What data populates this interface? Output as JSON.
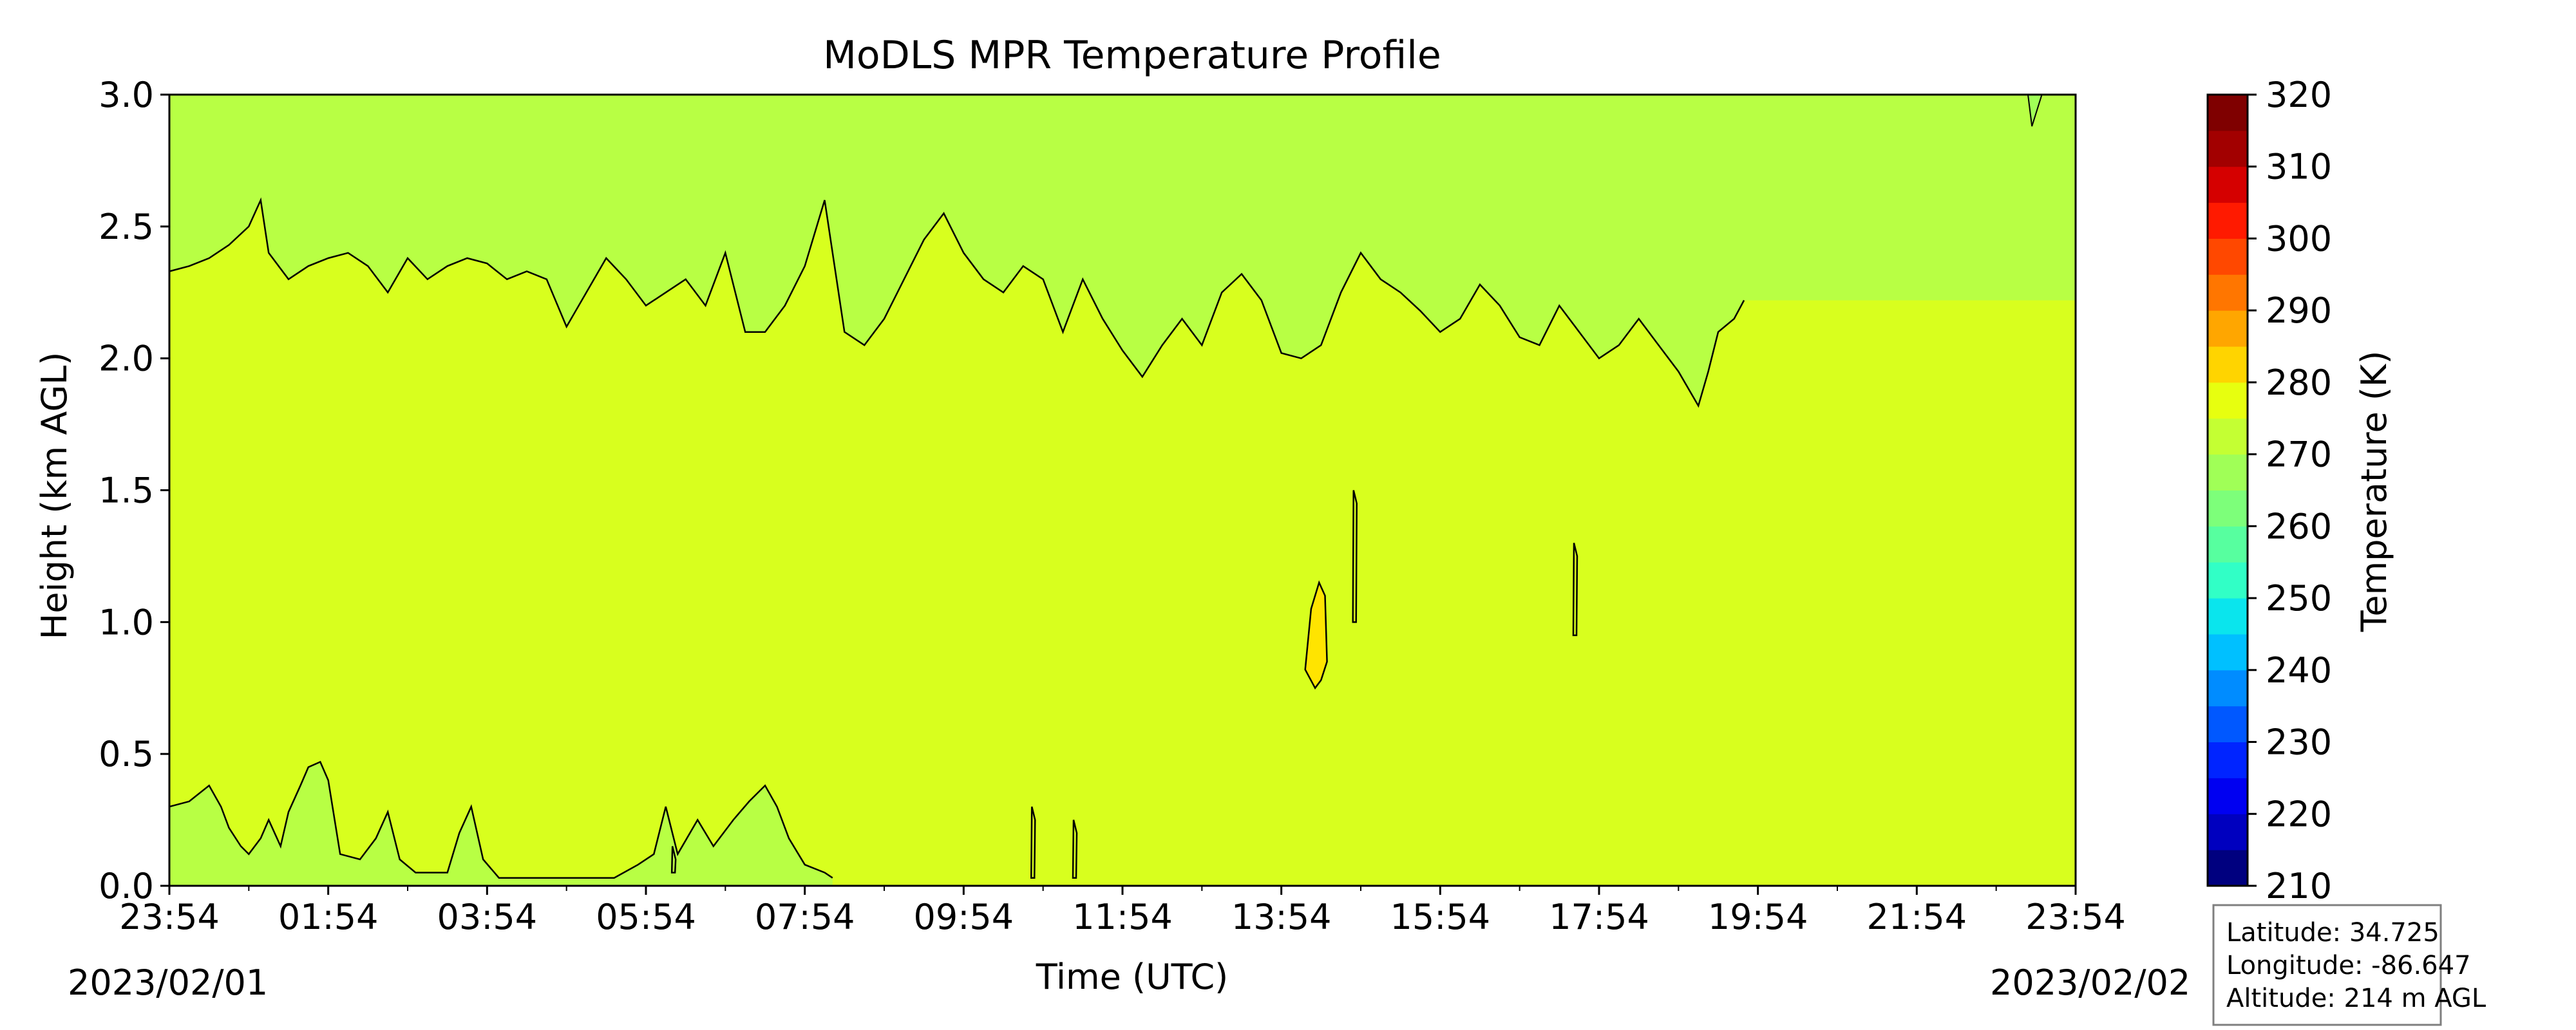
{
  "chart_data": {
    "type": "contour",
    "title": "MoDLS MPR Temperature Profile",
    "xlabel": "Time (UTC)",
    "ylabel": "Height (km AGL)",
    "ylim": [
      0,
      3.0
    ],
    "yticks": [
      "0.0",
      "0.5",
      "1.0",
      "1.5",
      "2.0",
      "2.5",
      "3.0"
    ],
    "xticks": [
      "23:54",
      "01:54",
      "03:54",
      "05:54",
      "07:54",
      "09:54",
      "11:54",
      "13:54",
      "15:54",
      "17:54",
      "19:54",
      "21:54",
      "23:54"
    ],
    "start_date": "2023/02/01",
    "end_date": "2023/02/02",
    "colorbar": {
      "label": "Temperature (K)",
      "range": [
        210,
        320
      ],
      "step": 5,
      "tick_labels": [
        "210",
        "220",
        "230",
        "240",
        "250",
        "260",
        "270",
        "280",
        "290",
        "300",
        "310",
        "320"
      ],
      "colors": [
        "#00007f",
        "#0000bf",
        "#0000f1",
        "#0024ff",
        "#0058ff",
        "#008cff",
        "#00c0ff",
        "#0ae5ed",
        "#31ffc6",
        "#57ff9f",
        "#7dff7a",
        "#a0ff57",
        "#c4ff33",
        "#e7ff0f",
        "#ffd400",
        "#ffa600",
        "#ff7600",
        "#ff4800",
        "#ff1a00",
        "#d50000",
        "#a20000",
        "#7f0000"
      ]
    },
    "contour_levels": [
      {
        "range": [
          270,
          275
        ],
        "color": "#b8ff44",
        "regions": [
          "above about 2.0-2.6 km all day",
          "below about 0.1-0.47 km from 23:54 to about 09:54"
        ]
      },
      {
        "range": [
          275,
          280
        ],
        "color": "#d8ff1e",
        "regions": [
          "main layer from surface to about 2.0-2.6 km"
        ]
      },
      {
        "range": [
          280,
          285
        ],
        "color": "#ffe400",
        "regions": [
          "small pocket near 14:14, 0.75-1.15 km"
        ]
      }
    ],
    "upper_boundary_km": [
      [
        0.0,
        2.33
      ],
      [
        0.5,
        2.35
      ],
      [
        1.0,
        2.38
      ],
      [
        1.5,
        2.43
      ],
      [
        2.0,
        2.5
      ],
      [
        2.3,
        2.6
      ],
      [
        2.5,
        2.4
      ],
      [
        3.0,
        2.3
      ],
      [
        3.5,
        2.35
      ],
      [
        4.0,
        2.38
      ],
      [
        4.5,
        2.4
      ],
      [
        5.0,
        2.35
      ],
      [
        5.5,
        2.25
      ],
      [
        6.0,
        2.38
      ],
      [
        6.5,
        2.3
      ],
      [
        7.0,
        2.35
      ],
      [
        7.5,
        2.38
      ],
      [
        8.0,
        2.36
      ],
      [
        8.5,
        2.3
      ],
      [
        9.0,
        2.33
      ],
      [
        9.5,
        2.3
      ],
      [
        10.0,
        2.12
      ],
      [
        10.5,
        2.25
      ],
      [
        11.0,
        2.38
      ],
      [
        11.5,
        2.3
      ],
      [
        12.0,
        2.2
      ],
      [
        12.5,
        2.25
      ],
      [
        13.0,
        2.3
      ],
      [
        13.5,
        2.2
      ],
      [
        14.0,
        2.4
      ],
      [
        14.5,
        2.1
      ],
      [
        15.0,
        2.1
      ],
      [
        15.5,
        2.2
      ],
      [
        16.0,
        2.35
      ],
      [
        16.5,
        2.6
      ],
      [
        17.0,
        2.1
      ],
      [
        17.5,
        2.05
      ],
      [
        18.0,
        2.15
      ],
      [
        18.5,
        2.3
      ],
      [
        19.0,
        2.45
      ],
      [
        19.5,
        2.55
      ],
      [
        20.0,
        2.4
      ],
      [
        20.5,
        2.3
      ],
      [
        21.0,
        2.25
      ],
      [
        21.5,
        2.35
      ],
      [
        22.0,
        2.3
      ],
      [
        22.5,
        2.1
      ],
      [
        23.0,
        2.3
      ],
      [
        23.5,
        2.15
      ],
      [
        24.0,
        2.03
      ],
      [
        24.5,
        1.93
      ],
      [
        25.0,
        2.05
      ],
      [
        25.5,
        2.15
      ],
      [
        26.0,
        2.05
      ],
      [
        26.5,
        2.25
      ],
      [
        27.0,
        2.32
      ],
      [
        27.5,
        2.22
      ],
      [
        28.0,
        2.02
      ],
      [
        28.5,
        2.0
      ],
      [
        29.0,
        2.05
      ],
      [
        29.5,
        2.25
      ],
      [
        30.0,
        2.4
      ],
      [
        30.5,
        2.3
      ],
      [
        31.0,
        2.25
      ],
      [
        31.5,
        2.18
      ],
      [
        32.0,
        2.1
      ],
      [
        32.5,
        2.15
      ],
      [
        33.0,
        2.28
      ],
      [
        33.5,
        2.2
      ],
      [
        34.0,
        2.08
      ],
      [
        34.5,
        2.05
      ],
      [
        35.0,
        2.2
      ],
      [
        35.5,
        2.1
      ],
      [
        36.0,
        2.0
      ],
      [
        36.5,
        2.05
      ],
      [
        37.0,
        2.15
      ],
      [
        37.5,
        2.05
      ],
      [
        38.0,
        1.95
      ],
      [
        38.5,
        1.82
      ],
      [
        38.75,
        1.95
      ],
      [
        39.0,
        2.1
      ],
      [
        39.4,
        2.15
      ],
      [
        39.65,
        2.22
      ]
    ],
    "lower_boundary_km": [
      [
        0.0,
        0.3
      ],
      [
        0.5,
        0.32
      ],
      [
        1.0,
        0.38
      ],
      [
        1.3,
        0.3
      ],
      [
        1.5,
        0.22
      ],
      [
        1.8,
        0.15
      ],
      [
        2.0,
        0.12
      ],
      [
        2.3,
        0.18
      ],
      [
        2.5,
        0.25
      ],
      [
        2.8,
        0.15
      ],
      [
        3.0,
        0.28
      ],
      [
        3.3,
        0.38
      ],
      [
        3.5,
        0.45
      ],
      [
        3.8,
        0.47
      ],
      [
        4.0,
        0.4
      ],
      [
        4.3,
        0.12
      ],
      [
        4.8,
        0.1
      ],
      [
        5.2,
        0.18
      ],
      [
        5.5,
        0.28
      ],
      [
        5.8,
        0.1
      ],
      [
        6.2,
        0.05
      ],
      [
        6.7,
        0.05
      ],
      [
        7.0,
        0.05
      ],
      [
        7.3,
        0.2
      ],
      [
        7.6,
        0.3
      ],
      [
        7.9,
        0.1
      ],
      [
        8.3,
        0.03
      ],
      [
        11.2,
        0.03
      ],
      [
        11.8,
        0.08
      ],
      [
        12.2,
        0.12
      ],
      [
        12.5,
        0.3
      ],
      [
        12.8,
        0.12
      ],
      [
        13.3,
        0.25
      ],
      [
        13.7,
        0.15
      ],
      [
        14.2,
        0.25
      ],
      [
        14.6,
        0.32
      ],
      [
        15.0,
        0.38
      ],
      [
        15.3,
        0.3
      ],
      [
        15.6,
        0.18
      ],
      [
        16.0,
        0.08
      ],
      [
        16.5,
        0.05
      ],
      [
        16.7,
        0.03
      ]
    ],
    "site_info": {
      "latitude": "Latitude: 34.725",
      "longitude": "Longitude: -86.647",
      "altitude": "Altitude: 214 m AGL"
    }
  }
}
